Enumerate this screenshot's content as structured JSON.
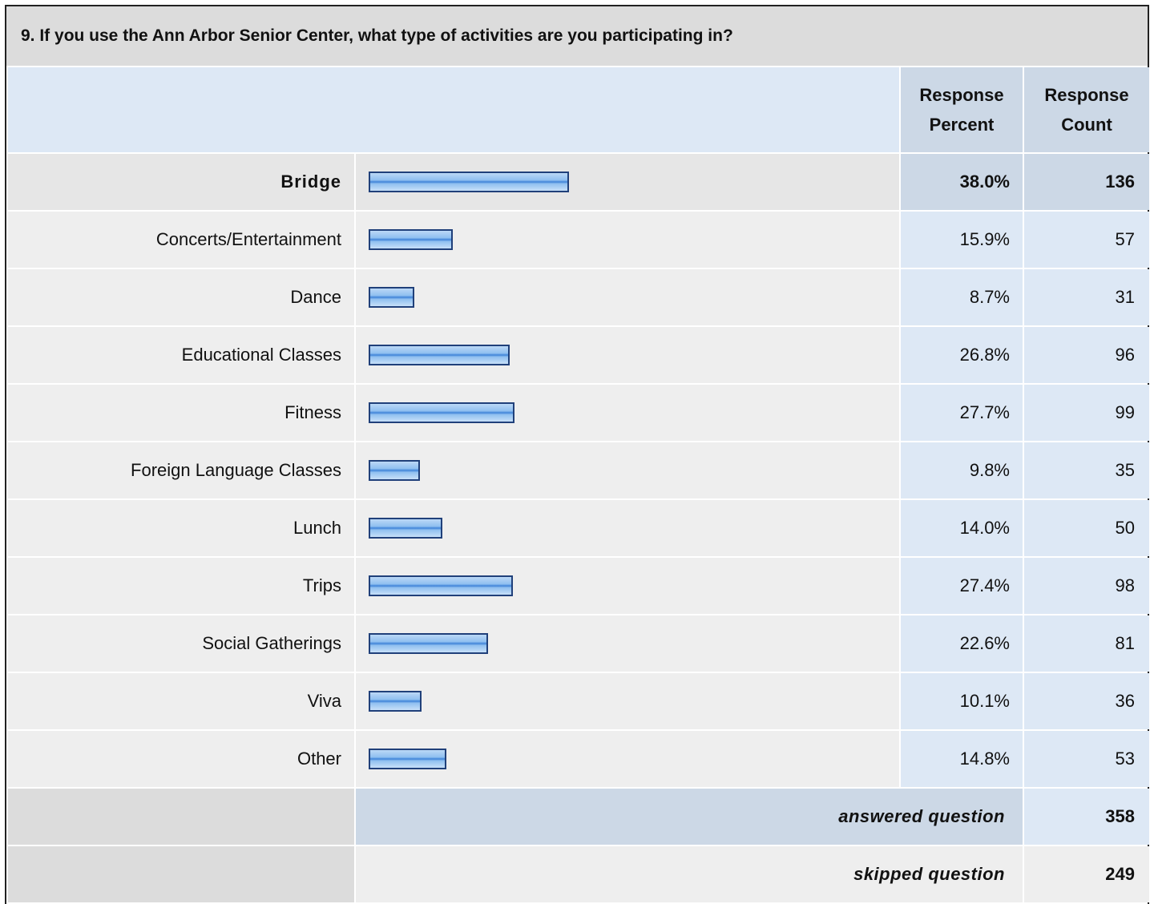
{
  "title": "9. If you use the Ann Arbor Senior Center, what type of activities are you participating in?",
  "header": {
    "percent": "Response Percent",
    "count": "Response Count"
  },
  "rows": [
    {
      "label": "Bridge",
      "percent": {
        "value": 38.0,
        "label": "38.0%"
      },
      "count": 136
    },
    {
      "label": "Concerts/Entertainment",
      "percent": {
        "value": 15.9,
        "label": "15.9%"
      },
      "count": 57
    },
    {
      "label": "Dance",
      "percent": {
        "value": 8.7,
        "label": "8.7%"
      },
      "count": 31
    },
    {
      "label": "Educational Classes",
      "percent": {
        "value": 26.8,
        "label": "26.8%"
      },
      "count": 96
    },
    {
      "label": "Fitness",
      "percent": {
        "value": 27.7,
        "label": "27.7%"
      },
      "count": 99
    },
    {
      "label": "Foreign Language Classes",
      "percent": {
        "value": 9.8,
        "label": "9.8%"
      },
      "count": 35
    },
    {
      "label": "Lunch",
      "percent": {
        "value": 14.0,
        "label": "14.0%"
      },
      "count": 50
    },
    {
      "label": "Trips",
      "percent": {
        "value": 27.4,
        "label": "27.4%"
      },
      "count": 98
    },
    {
      "label": "Social Gatherings",
      "percent": {
        "value": 22.6,
        "label": "22.6%"
      },
      "count": 81
    },
    {
      "label": "Viva",
      "percent": {
        "value": 10.1,
        "label": "10.1%"
      },
      "count": 36
    },
    {
      "label": "Other",
      "percent": {
        "value": 14.8,
        "label": "14.8%"
      },
      "count": 53
    }
  ],
  "answered": {
    "label": "answered question",
    "count": 358
  },
  "skipped": {
    "label": "skipped question",
    "count": 249
  }
}
